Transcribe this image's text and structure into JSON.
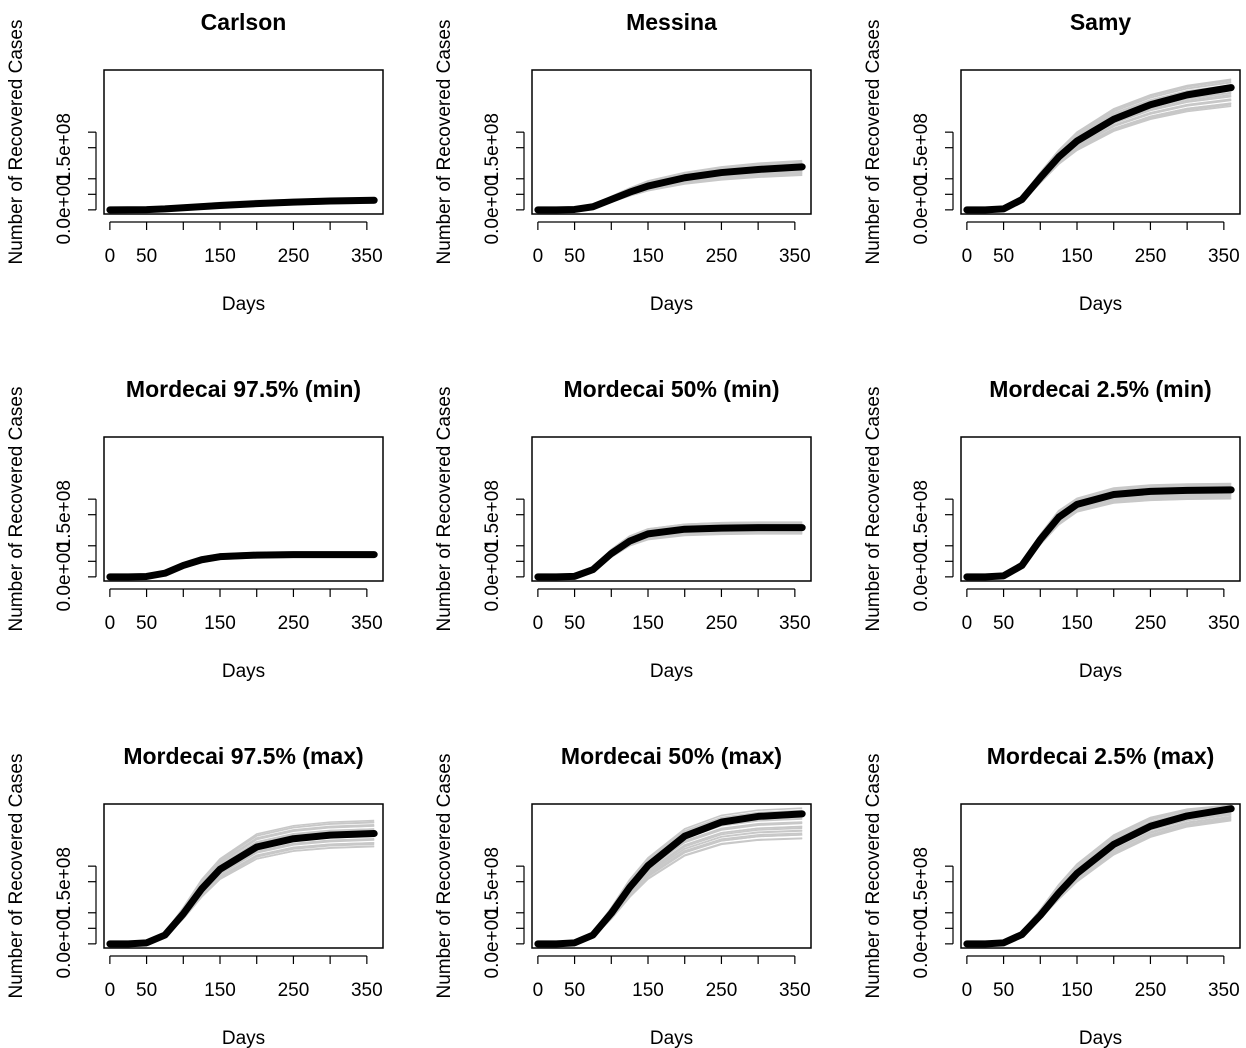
{
  "figure": {
    "rows": 3,
    "cols": 3
  },
  "chart_data": [
    {
      "type": "line",
      "title": "Carlson",
      "xlabel": "Days",
      "ylabel": "Number of Recovered Cases",
      "x_ticks": [
        0,
        50,
        150,
        250,
        350
      ],
      "x_minor_ticks": [
        100,
        200,
        300
      ],
      "y_tick_labels": [
        "0.0e+00",
        "1.5e+08"
      ],
      "xlim": [
        -8,
        372
      ],
      "ylim": [
        -8000000,
        270000000
      ],
      "grid": false,
      "legend": "none",
      "colors": {
        "mean": "#000000",
        "simulations": "#c8c8c8"
      },
      "series": [
        {
          "x": [
            0,
            50,
            75,
            100,
            150,
            200,
            250,
            300,
            360
          ],
          "y": [
            0,
            500000,
            1800000,
            4000000,
            8500000,
            12000000,
            15000000,
            17000000,
            18500000
          ]
        }
      ],
      "sim_band": {
        "x": [
          0,
          50,
          75,
          100,
          150,
          200,
          250,
          300,
          360
        ],
        "lower": [
          0,
          200000,
          800000,
          2000000,
          5000000,
          8000000,
          10000000,
          12000000,
          13000000
        ],
        "upper": [
          0,
          1000000,
          3500000,
          8000000,
          14000000,
          18000000,
          20000000,
          21000000,
          22000000
        ]
      }
    },
    {
      "type": "line",
      "title": "Messina",
      "xlabel": "Days",
      "ylabel": "Number of Recovered Cases",
      "x_ticks": [
        0,
        50,
        150,
        250,
        350
      ],
      "x_minor_ticks": [
        100,
        200,
        300
      ],
      "y_tick_labels": [
        "0.0e+00",
        "1.5e+08"
      ],
      "xlim": [
        -8,
        372
      ],
      "ylim": [
        -8000000,
        270000000
      ],
      "grid": false,
      "legend": "none",
      "colors": {
        "mean": "#000000",
        "simulations": "#c8c8c8"
      },
      "series": [
        {
          "x": [
            0,
            25,
            50,
            75,
            100,
            125,
            150,
            200,
            250,
            300,
            360
          ],
          "y": [
            0,
            0,
            800000,
            6000000,
            20000000,
            34000000,
            46000000,
            62000000,
            72000000,
            78000000,
            83000000
          ]
        }
      ],
      "sim_band": {
        "x": [
          0,
          25,
          50,
          75,
          100,
          125,
          150,
          200,
          250,
          300,
          360
        ],
        "lower": [
          0,
          0,
          500000,
          4000000,
          15000000,
          27000000,
          37000000,
          50000000,
          58000000,
          63000000,
          67000000
        ],
        "upper": [
          0,
          0,
          1500000,
          9000000,
          26000000,
          42000000,
          56000000,
          72000000,
          83000000,
          90000000,
          95000000
        ]
      }
    },
    {
      "type": "line",
      "title": "Samy",
      "xlabel": "Days",
      "ylabel": "Number of Recovered Cases",
      "x_ticks": [
        0,
        50,
        150,
        250,
        350
      ],
      "x_minor_ticks": [
        100,
        200,
        300
      ],
      "y_tick_labels": [
        "0.0e+00",
        "1.5e+08"
      ],
      "xlim": [
        -8,
        372
      ],
      "ylim": [
        -8000000,
        270000000
      ],
      "grid": false,
      "legend": "none",
      "colors": {
        "mean": "#000000",
        "simulations": "#c8c8c8"
      },
      "series": [
        {
          "x": [
            0,
            25,
            50,
            75,
            100,
            125,
            150,
            200,
            250,
            300,
            360
          ],
          "y": [
            0,
            0,
            2000000,
            20000000,
            62000000,
            102000000,
            133000000,
            175000000,
            203000000,
            222000000,
            236000000
          ]
        }
      ],
      "sim_band": {
        "x": [
          0,
          25,
          50,
          75,
          100,
          125,
          150,
          200,
          250,
          300,
          360
        ],
        "lower": [
          0,
          0,
          1500000,
          15000000,
          52000000,
          88000000,
          115000000,
          152000000,
          175000000,
          190000000,
          200000000
        ],
        "upper": [
          0,
          0,
          3000000,
          26000000,
          72000000,
          115000000,
          150000000,
          195000000,
          222000000,
          240000000,
          252000000
        ]
      }
    },
    {
      "type": "line",
      "title": "Mordecai 97.5% (min)",
      "xlabel": "Days",
      "ylabel": "Number of Recovered Cases",
      "x_ticks": [
        0,
        50,
        150,
        250,
        350
      ],
      "x_minor_ticks": [
        100,
        200,
        300
      ],
      "y_tick_labels": [
        "0.0e+00",
        "1.5e+08"
      ],
      "xlim": [
        -8,
        372
      ],
      "ylim": [
        -8000000,
        270000000
      ],
      "grid": false,
      "legend": "none",
      "colors": {
        "mean": "#000000",
        "simulations": "#c8c8c8"
      },
      "series": [
        {
          "x": [
            0,
            25,
            50,
            75,
            100,
            125,
            150,
            200,
            250,
            300,
            360
          ],
          "y": [
            0,
            0,
            700000,
            7000000,
            22000000,
            33000000,
            39000000,
            42000000,
            43000000,
            43000000,
            43000000
          ]
        }
      ],
      "sim_band": {
        "x": [
          0,
          25,
          50,
          75,
          100,
          125,
          150,
          200,
          250,
          300,
          360
        ],
        "lower": [
          0,
          0,
          500000,
          5000000,
          18000000,
          28000000,
          34000000,
          37000000,
          38000000,
          38000000,
          38000000
        ],
        "upper": [
          0,
          0,
          1000000,
          9000000,
          26000000,
          38000000,
          44000000,
          47000000,
          48000000,
          48000000,
          48000000
        ]
      }
    },
    {
      "type": "line",
      "title": "Mordecai 50% (min)",
      "xlabel": "Days",
      "ylabel": "Number of Recovered Cases",
      "x_ticks": [
        0,
        50,
        150,
        250,
        350
      ],
      "x_minor_ticks": [
        100,
        200,
        300
      ],
      "y_tick_labels": [
        "0.0e+00",
        "1.5e+08"
      ],
      "xlim": [
        -8,
        372
      ],
      "ylim": [
        -8000000,
        270000000
      ],
      "grid": false,
      "legend": "none",
      "colors": {
        "mean": "#000000",
        "simulations": "#c8c8c8"
      },
      "series": [
        {
          "x": [
            0,
            25,
            50,
            75,
            100,
            125,
            150,
            200,
            250,
            300,
            360
          ],
          "y": [
            0,
            0,
            1000000,
            14000000,
            45000000,
            69000000,
            83000000,
            92000000,
            94000000,
            95000000,
            95000000
          ]
        }
      ],
      "sim_band": {
        "x": [
          0,
          25,
          50,
          75,
          100,
          125,
          150,
          200,
          250,
          300,
          360
        ],
        "lower": [
          0,
          0,
          700000,
          11000000,
          38000000,
          60000000,
          72000000,
          80000000,
          82000000,
          83000000,
          83000000
        ],
        "upper": [
          0,
          0,
          1500000,
          18000000,
          53000000,
          79000000,
          93000000,
          102000000,
          105000000,
          106000000,
          106000000
        ]
      }
    },
    {
      "type": "line",
      "title": "Mordecai 2.5% (min)",
      "xlabel": "Days",
      "ylabel": "Number of Recovered Cases",
      "x_ticks": [
        0,
        50,
        150,
        250,
        350
      ],
      "x_minor_ticks": [
        100,
        200,
        300
      ],
      "y_tick_labels": [
        "0.0e+00",
        "1.5e+08"
      ],
      "xlim": [
        -8,
        372
      ],
      "ylim": [
        -8000000,
        270000000
      ],
      "grid": false,
      "legend": "none",
      "colors": {
        "mean": "#000000",
        "simulations": "#c8c8c8"
      },
      "series": [
        {
          "x": [
            0,
            25,
            50,
            75,
            100,
            125,
            150,
            200,
            250,
            300,
            360
          ],
          "y": [
            0,
            0,
            2000000,
            22000000,
            72000000,
            115000000,
            140000000,
            159000000,
            165000000,
            167000000,
            168000000
          ]
        }
      ],
      "sim_band": {
        "x": [
          0,
          25,
          50,
          75,
          100,
          125,
          150,
          200,
          250,
          300,
          360
        ],
        "lower": [
          0,
          0,
          1500000,
          18000000,
          62000000,
          100000000,
          125000000,
          142000000,
          147000000,
          149000000,
          150000000
        ],
        "upper": [
          0,
          0,
          2500000,
          27000000,
          82000000,
          128000000,
          152000000,
          172000000,
          178000000,
          180000000,
          181000000
        ]
      }
    },
    {
      "type": "line",
      "title": "Mordecai 97.5% (max)",
      "xlabel": "Days",
      "ylabel": "Number of Recovered Cases",
      "x_ticks": [
        0,
        50,
        150,
        250,
        350
      ],
      "x_minor_ticks": [
        100,
        200,
        300
      ],
      "y_tick_labels": [
        "0.0e+00",
        "1.5e+08"
      ],
      "xlim": [
        -8,
        372
      ],
      "ylim": [
        -8000000,
        270000000
      ],
      "grid": false,
      "legend": "none",
      "colors": {
        "mean": "#000000",
        "simulations": "#c8c8c8"
      },
      "series": [
        {
          "x": [
            0,
            25,
            50,
            75,
            100,
            125,
            150,
            200,
            250,
            300,
            360
          ],
          "y": [
            0,
            0,
            2000000,
            17000000,
            58000000,
            106000000,
            144000000,
            187000000,
            203000000,
            210000000,
            213000000
          ]
        }
      ],
      "sim_band": {
        "x": [
          0,
          25,
          50,
          75,
          100,
          125,
          150,
          200,
          250,
          300,
          360
        ],
        "lower": [
          0,
          0,
          1500000,
          14000000,
          48000000,
          90000000,
          124000000,
          163000000,
          178000000,
          184000000,
          187000000
        ],
        "upper": [
          0,
          0,
          2500000,
          22000000,
          70000000,
          124000000,
          164000000,
          212000000,
          228000000,
          235000000,
          238000000
        ]
      }
    },
    {
      "type": "line",
      "title": "Mordecai 50% (max)",
      "xlabel": "Days",
      "ylabel": "Number of Recovered Cases",
      "x_ticks": [
        0,
        50,
        150,
        250,
        350
      ],
      "x_minor_ticks": [
        100,
        200,
        300
      ],
      "y_tick_labels": [
        "0.0e+00",
        "1.5e+08"
      ],
      "xlim": [
        -8,
        372
      ],
      "ylim": [
        -8000000,
        270000000
      ],
      "grid": false,
      "legend": "none",
      "colors": {
        "mean": "#000000",
        "simulations": "#c8c8c8"
      },
      "series": [
        {
          "x": [
            0,
            25,
            50,
            75,
            100,
            125,
            150,
            200,
            250,
            300,
            360
          ],
          "y": [
            0,
            0,
            2000000,
            17000000,
            59000000,
            109000000,
            151000000,
            208000000,
            235000000,
            246000000,
            251000000
          ]
        }
      ],
      "sim_band": {
        "x": [
          0,
          25,
          50,
          75,
          100,
          125,
          150,
          200,
          250,
          300,
          360
        ],
        "lower": [
          0,
          0,
          1500000,
          13000000,
          48000000,
          90000000,
          125000000,
          170000000,
          192000000,
          200000000,
          203000000
        ],
        "upper": [
          0,
          0,
          2500000,
          22000000,
          70000000,
          124000000,
          166000000,
          222000000,
          248000000,
          258000000,
          262000000
        ]
      }
    },
    {
      "type": "line",
      "title": "Mordecai 2.5% (max)",
      "xlabel": "Days",
      "ylabel": "Number of Recovered Cases",
      "x_ticks": [
        0,
        50,
        150,
        250,
        350
      ],
      "x_minor_ticks": [
        100,
        200,
        300
      ],
      "y_tick_labels": [
        "0.0e+00",
        "1.5e+08"
      ],
      "xlim": [
        -8,
        372
      ],
      "ylim": [
        -8000000,
        270000000
      ],
      "grid": false,
      "legend": "none",
      "colors": {
        "mean": "#000000",
        "simulations": "#c8c8c8"
      },
      "series": [
        {
          "x": [
            0,
            25,
            50,
            75,
            100,
            125,
            150,
            200,
            250,
            300,
            360
          ],
          "y": [
            0,
            0,
            2000000,
            18000000,
            55000000,
            98000000,
            136000000,
            192000000,
            227000000,
            247000000,
            261000000
          ]
        }
      ],
      "sim_band": {
        "x": [
          0,
          25,
          50,
          75,
          100,
          125,
          150,
          200,
          250,
          300,
          360
        ],
        "lower": [
          0,
          0,
          1500000,
          15000000,
          48000000,
          86000000,
          120000000,
          172000000,
          206000000,
          226000000,
          238000000
        ],
        "upper": [
          0,
          0,
          2500000,
          23000000,
          66000000,
          114000000,
          154000000,
          210000000,
          244000000,
          260000000,
          268000000
        ]
      }
    }
  ]
}
